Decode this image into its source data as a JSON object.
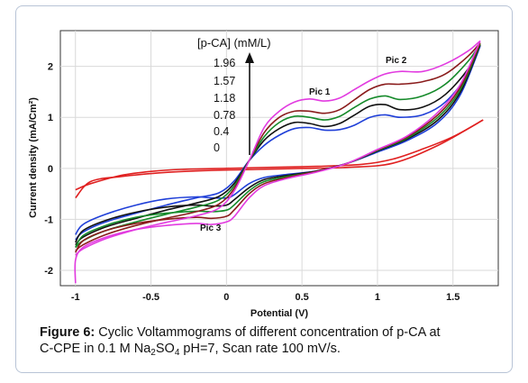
{
  "chart_data": {
    "type": "line",
    "xlabel": "Potential (V)",
    "ylabel": "Current density (mA/Cm²)",
    "xlim": [
      -1.1,
      1.8
    ],
    "ylim": [
      -2.3,
      2.7
    ],
    "xticks": [
      {
        "v": -1,
        "label": "-1"
      },
      {
        "v": -0.5,
        "label": "-0.5"
      },
      {
        "v": 0,
        "label": "0"
      },
      {
        "v": 0.5,
        "label": "0.5"
      },
      {
        "v": 1,
        "label": "1"
      },
      {
        "v": 1.5,
        "label": "1.5"
      }
    ],
    "yticks": [
      {
        "v": -2,
        "label": "-2"
      },
      {
        "v": -1,
        "label": "-1"
      },
      {
        "v": 0,
        "label": "0"
      },
      {
        "v": 1,
        "label": "1"
      },
      {
        "v": 2,
        "label": "2"
      }
    ],
    "grid": true,
    "legend": {
      "title": "[p-CA] (mM/L)",
      "entries": [
        "1.96",
        "1.57",
        "1.18",
        "0.78",
        "0.4",
        "0"
      ]
    },
    "annotations": {
      "pic1": "Pic 1",
      "pic2": "Pic 2",
      "pic3": "Pic 3"
    },
    "series": [
      {
        "concentration": "0",
        "color": "#e02020",
        "forward": [
          [
            -1.0,
            -0.42
          ],
          [
            -0.9,
            -0.3
          ],
          [
            -0.7,
            -0.14
          ],
          [
            -0.5,
            -0.06
          ],
          [
            -0.3,
            -0.02
          ],
          [
            0.0,
            0.0
          ],
          [
            0.3,
            0.02
          ],
          [
            0.6,
            0.04
          ],
          [
            0.9,
            0.08
          ],
          [
            1.1,
            0.18
          ],
          [
            1.3,
            0.38
          ],
          [
            1.5,
            0.62
          ],
          [
            1.7,
            0.95
          ]
        ],
        "reverse": [
          [
            1.7,
            0.95
          ],
          [
            1.4,
            0.45
          ],
          [
            1.1,
            0.1
          ],
          [
            0.8,
            0.02
          ],
          [
            0.5,
            0.0
          ],
          [
            0.2,
            -0.02
          ],
          [
            -0.1,
            -0.04
          ],
          [
            -0.4,
            -0.08
          ],
          [
            -0.7,
            -0.16
          ],
          [
            -0.9,
            -0.26
          ],
          [
            -1.0,
            -0.58
          ]
        ]
      },
      {
        "concentration": "0.4",
        "color": "#1f3fd8",
        "forward": [
          [
            -1.0,
            -1.4
          ],
          [
            -0.95,
            -1.25
          ],
          [
            -0.8,
            -1.05
          ],
          [
            -0.6,
            -0.88
          ],
          [
            -0.4,
            -0.72
          ],
          [
            -0.2,
            -0.58
          ],
          [
            -0.05,
            -0.48
          ],
          [
            0.05,
            -0.25
          ],
          [
            0.15,
            0.15
          ],
          [
            0.25,
            0.45
          ],
          [
            0.35,
            0.65
          ],
          [
            0.45,
            0.78
          ],
          [
            0.55,
            0.8
          ],
          [
            0.65,
            0.75
          ],
          [
            0.75,
            0.76
          ],
          [
            0.85,
            0.85
          ],
          [
            0.95,
            1.0
          ],
          [
            1.05,
            1.05
          ],
          [
            1.15,
            1.0
          ],
          [
            1.3,
            1.05
          ],
          [
            1.45,
            1.3
          ],
          [
            1.6,
            1.85
          ],
          [
            1.68,
            2.4
          ]
        ],
        "reverse": [
          [
            1.68,
            2.4
          ],
          [
            1.55,
            1.45
          ],
          [
            1.4,
            0.9
          ],
          [
            1.2,
            0.55
          ],
          [
            1.0,
            0.32
          ],
          [
            0.8,
            0.1
          ],
          [
            0.6,
            -0.05
          ],
          [
            0.4,
            -0.12
          ],
          [
            0.25,
            -0.18
          ],
          [
            0.15,
            -0.3
          ],
          [
            0.05,
            -0.52
          ],
          [
            0.0,
            -0.58
          ],
          [
            -0.1,
            -0.58
          ],
          [
            -0.2,
            -0.56
          ],
          [
            -0.4,
            -0.6
          ],
          [
            -0.6,
            -0.72
          ],
          [
            -0.8,
            -0.9
          ],
          [
            -0.95,
            -1.1
          ],
          [
            -1.0,
            -1.3
          ]
        ]
      },
      {
        "concentration": "0.78",
        "color": "#111111",
        "forward": [
          [
            -1.0,
            -1.5
          ],
          [
            -0.95,
            -1.35
          ],
          [
            -0.8,
            -1.15
          ],
          [
            -0.6,
            -0.98
          ],
          [
            -0.4,
            -0.82
          ],
          [
            -0.2,
            -0.68
          ],
          [
            -0.05,
            -0.55
          ],
          [
            0.05,
            -0.3
          ],
          [
            0.15,
            0.15
          ],
          [
            0.25,
            0.55
          ],
          [
            0.35,
            0.78
          ],
          [
            0.45,
            0.9
          ],
          [
            0.55,
            0.88
          ],
          [
            0.65,
            0.82
          ],
          [
            0.75,
            0.88
          ],
          [
            0.85,
            1.05
          ],
          [
            0.95,
            1.22
          ],
          [
            1.05,
            1.25
          ],
          [
            1.15,
            1.15
          ],
          [
            1.3,
            1.2
          ],
          [
            1.45,
            1.45
          ],
          [
            1.6,
            1.95
          ],
          [
            1.68,
            2.42
          ]
        ],
        "reverse": [
          [
            1.68,
            2.42
          ],
          [
            1.55,
            1.5
          ],
          [
            1.4,
            0.95
          ],
          [
            1.2,
            0.58
          ],
          [
            1.0,
            0.34
          ],
          [
            0.8,
            0.1
          ],
          [
            0.6,
            -0.05
          ],
          [
            0.4,
            -0.14
          ],
          [
            0.25,
            -0.22
          ],
          [
            0.15,
            -0.38
          ],
          [
            0.05,
            -0.62
          ],
          [
            0.0,
            -0.72
          ],
          [
            -0.1,
            -0.74
          ],
          [
            -0.2,
            -0.72
          ],
          [
            -0.4,
            -0.76
          ],
          [
            -0.6,
            -0.86
          ],
          [
            -0.8,
            -1.02
          ],
          [
            -0.95,
            -1.22
          ],
          [
            -1.0,
            -1.45
          ]
        ]
      },
      {
        "concentration": "1.18",
        "color": "#158a2a",
        "forward": [
          [
            -1.0,
            -1.55
          ],
          [
            -0.95,
            -1.42
          ],
          [
            -0.8,
            -1.22
          ],
          [
            -0.6,
            -1.05
          ],
          [
            -0.4,
            -0.9
          ],
          [
            -0.2,
            -0.76
          ],
          [
            -0.05,
            -0.62
          ],
          [
            0.05,
            -0.35
          ],
          [
            0.15,
            0.15
          ],
          [
            0.25,
            0.62
          ],
          [
            0.35,
            0.9
          ],
          [
            0.45,
            1.02
          ],
          [
            0.55,
            1.0
          ],
          [
            0.65,
            0.95
          ],
          [
            0.75,
            1.02
          ],
          [
            0.85,
            1.2
          ],
          [
            0.95,
            1.36
          ],
          [
            1.05,
            1.42
          ],
          [
            1.15,
            1.35
          ],
          [
            1.3,
            1.42
          ],
          [
            1.45,
            1.65
          ],
          [
            1.6,
            2.1
          ],
          [
            1.68,
            2.44
          ]
        ],
        "reverse": [
          [
            1.68,
            2.44
          ],
          [
            1.55,
            1.55
          ],
          [
            1.4,
            1.0
          ],
          [
            1.2,
            0.6
          ],
          [
            1.0,
            0.35
          ],
          [
            0.8,
            0.1
          ],
          [
            0.6,
            -0.06
          ],
          [
            0.4,
            -0.16
          ],
          [
            0.25,
            -0.26
          ],
          [
            0.15,
            -0.44
          ],
          [
            0.05,
            -0.72
          ],
          [
            0.0,
            -0.82
          ],
          [
            -0.1,
            -0.85
          ],
          [
            -0.2,
            -0.84
          ],
          [
            -0.4,
            -0.88
          ],
          [
            -0.6,
            -0.96
          ],
          [
            -0.8,
            -1.12
          ],
          [
            -0.95,
            -1.32
          ],
          [
            -1.0,
            -1.55
          ]
        ]
      },
      {
        "concentration": "1.57",
        "color": "#8a1c1c",
        "forward": [
          [
            -1.0,
            -1.62
          ],
          [
            -0.95,
            -1.5
          ],
          [
            -0.8,
            -1.3
          ],
          [
            -0.6,
            -1.12
          ],
          [
            -0.4,
            -0.98
          ],
          [
            -0.2,
            -0.85
          ],
          [
            -0.05,
            -0.7
          ],
          [
            0.05,
            -0.4
          ],
          [
            0.15,
            0.15
          ],
          [
            0.25,
            0.7
          ],
          [
            0.35,
            1.0
          ],
          [
            0.45,
            1.12
          ],
          [
            0.55,
            1.12
          ],
          [
            0.65,
            1.08
          ],
          [
            0.75,
            1.15
          ],
          [
            0.85,
            1.35
          ],
          [
            0.95,
            1.55
          ],
          [
            1.05,
            1.65
          ],
          [
            1.15,
            1.65
          ],
          [
            1.3,
            1.7
          ],
          [
            1.45,
            1.85
          ],
          [
            1.6,
            2.2
          ],
          [
            1.68,
            2.46
          ]
        ],
        "reverse": [
          [
            1.68,
            2.46
          ],
          [
            1.55,
            1.6
          ],
          [
            1.4,
            1.05
          ],
          [
            1.2,
            0.62
          ],
          [
            1.0,
            0.36
          ],
          [
            0.8,
            0.1
          ],
          [
            0.6,
            -0.06
          ],
          [
            0.4,
            -0.18
          ],
          [
            0.25,
            -0.3
          ],
          [
            0.15,
            -0.5
          ],
          [
            0.05,
            -0.82
          ],
          [
            0.0,
            -0.94
          ],
          [
            -0.1,
            -0.98
          ],
          [
            -0.2,
            -0.96
          ],
          [
            -0.4,
            -1.0
          ],
          [
            -0.6,
            -1.08
          ],
          [
            -0.8,
            -1.22
          ],
          [
            -0.95,
            -1.42
          ],
          [
            -1.0,
            -1.65
          ]
        ]
      },
      {
        "concentration": "1.96",
        "color": "#e23be0",
        "forward": [
          [
            -1.0,
            -1.7
          ],
          [
            -0.95,
            -1.58
          ],
          [
            -0.8,
            -1.38
          ],
          [
            -0.6,
            -1.2
          ],
          [
            -0.4,
            -1.06
          ],
          [
            -0.2,
            -0.93
          ],
          [
            -0.05,
            -0.78
          ],
          [
            0.05,
            -0.45
          ],
          [
            0.15,
            0.15
          ],
          [
            0.25,
            0.8
          ],
          [
            0.35,
            1.12
          ],
          [
            0.45,
            1.3
          ],
          [
            0.55,
            1.36
          ],
          [
            0.65,
            1.32
          ],
          [
            0.75,
            1.38
          ],
          [
            0.85,
            1.55
          ],
          [
            0.95,
            1.72
          ],
          [
            1.05,
            1.85
          ],
          [
            1.15,
            1.9
          ],
          [
            1.3,
            1.9
          ],
          [
            1.45,
            2.05
          ],
          [
            1.6,
            2.3
          ],
          [
            1.68,
            2.5
          ]
        ],
        "reverse": [
          [
            1.68,
            2.5
          ],
          [
            1.55,
            1.65
          ],
          [
            1.4,
            1.1
          ],
          [
            1.2,
            0.64
          ],
          [
            1.0,
            0.37
          ],
          [
            0.8,
            0.1
          ],
          [
            0.6,
            -0.07
          ],
          [
            0.4,
            -0.2
          ],
          [
            0.25,
            -0.34
          ],
          [
            0.15,
            -0.58
          ],
          [
            0.05,
            -0.95
          ],
          [
            0.0,
            -1.05
          ],
          [
            -0.1,
            -1.1
          ],
          [
            -0.2,
            -1.08
          ],
          [
            -0.4,
            -1.12
          ],
          [
            -0.6,
            -1.2
          ],
          [
            -0.8,
            -1.35
          ],
          [
            -0.95,
            -1.55
          ],
          [
            -1.0,
            -1.8
          ],
          [
            -1.0,
            -2.25
          ]
        ]
      }
    ]
  },
  "caption": {
    "label": "Figure 6:",
    "line1": "Cyclic Voltammograms of different concentration of p-CA at",
    "line2_pre": "C-CPE in 0.1 M Na",
    "sub1": "2",
    "mid": "SO",
    "sub2": "4",
    "line2_post": " pH=7, Scan rate 100 mV/s."
  }
}
